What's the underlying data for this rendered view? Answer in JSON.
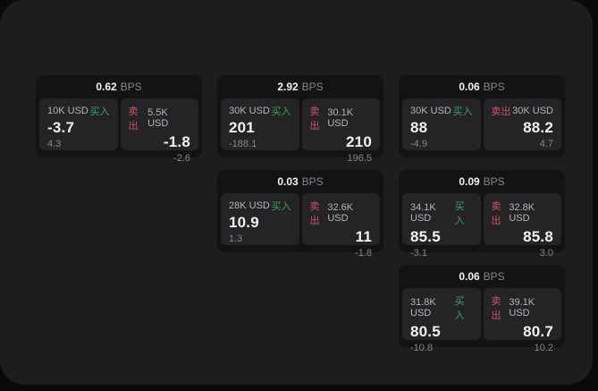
{
  "labels": {
    "bps_unit": "BPS",
    "buy": "买入",
    "sell": "卖出"
  },
  "colors": {
    "outer_bg": "#0a0a0b",
    "panel_bg": "#1d1d1f",
    "card_bg": "#131315",
    "tile_bg": "#242427",
    "text_primary": "#f2f2f2",
    "text_secondary": "#b4b4b8",
    "text_muted": "#86868a",
    "buy_green": "#3aa35c",
    "sell_red": "#d15362"
  },
  "layout": {
    "columns": [
      [
        0
      ],
      [
        1,
        2
      ],
      [
        3,
        4,
        5
      ]
    ]
  },
  "cards": [
    {
      "bps": "0.62",
      "buy": {
        "amount": "10K USD",
        "value": "-3.7",
        "delta": "4.3"
      },
      "sell": {
        "amount": "5.5K USD",
        "value": "-1.8",
        "delta": "-2.6"
      }
    },
    {
      "bps": "2.92",
      "buy": {
        "amount": "30K USD",
        "value": "201",
        "delta": "-188.1"
      },
      "sell": {
        "amount": "30.1K USD",
        "value": "210",
        "delta": "196.5"
      }
    },
    {
      "bps": "0.03",
      "buy": {
        "amount": "28K USD",
        "value": "10.9",
        "delta": "1.3"
      },
      "sell": {
        "amount": "32.6K USD",
        "value": "11",
        "delta": "-1.8"
      }
    },
    {
      "bps": "0.06",
      "buy": {
        "amount": "30K USD",
        "value": "88",
        "delta": "-4.9"
      },
      "sell": {
        "amount": "30K USD",
        "value": "88.2",
        "delta": "4.7"
      }
    },
    {
      "bps": "0.09",
      "buy": {
        "amount": "34.1K USD",
        "value": "85.5",
        "delta": "-3.1"
      },
      "sell": {
        "amount": "32.8K USD",
        "value": "85.8",
        "delta": "3.0"
      }
    },
    {
      "bps": "0.06",
      "buy": {
        "amount": "31.8K USD",
        "value": "80.5",
        "delta": "-10.8"
      },
      "sell": {
        "amount": "39.1K USD",
        "value": "80.7",
        "delta": "10.2"
      }
    }
  ]
}
